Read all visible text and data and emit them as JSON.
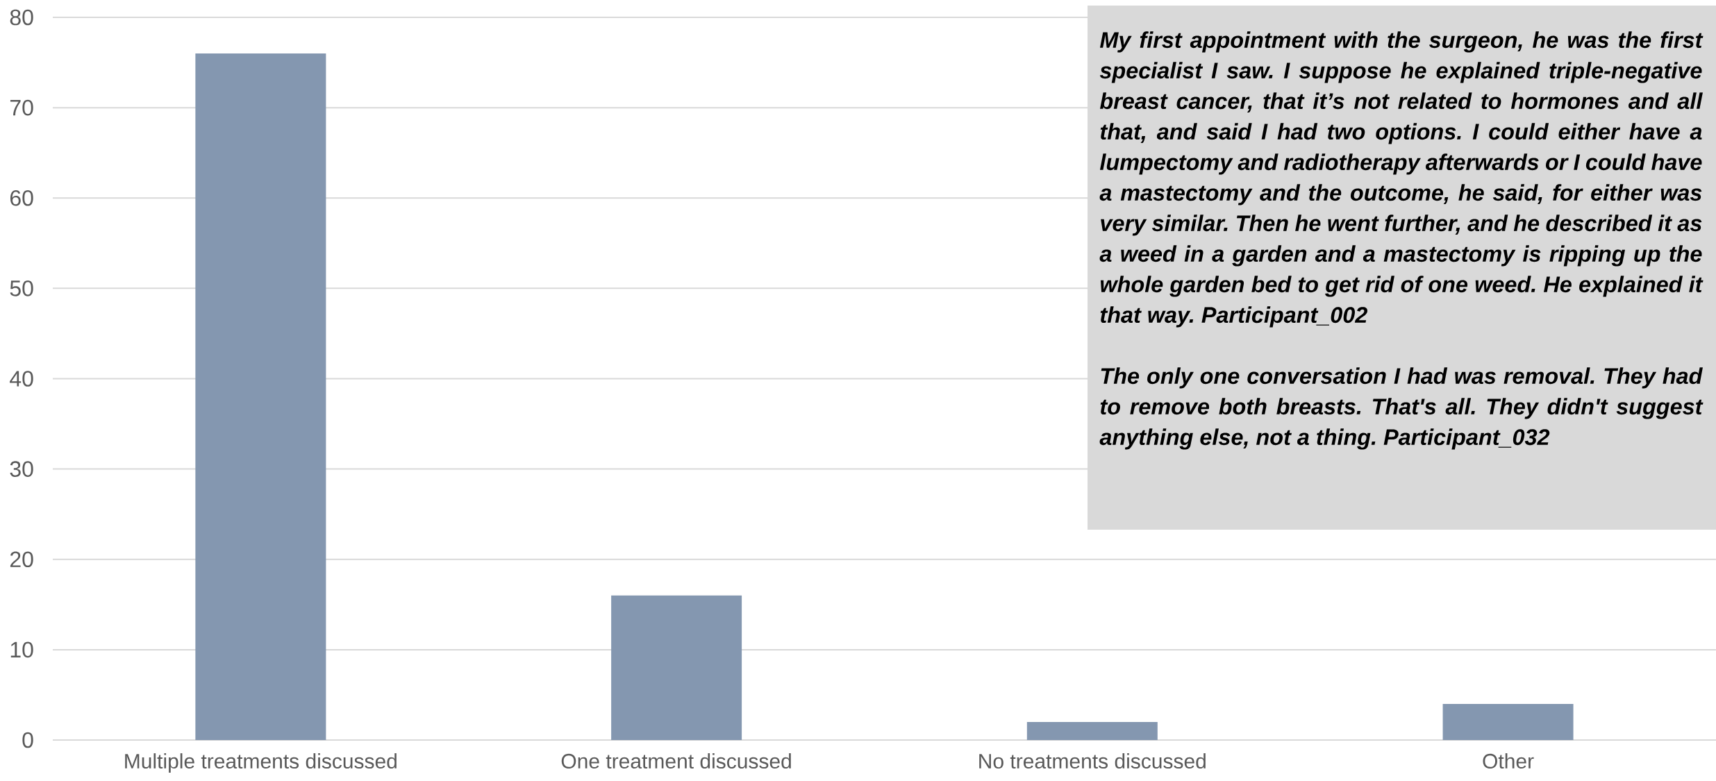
{
  "chart_data": {
    "type": "bar",
    "categories": [
      "Multiple treatments discussed",
      "One treatment discussed",
      "No treatments discussed",
      "Other"
    ],
    "values": [
      76,
      16,
      2,
      4
    ],
    "color": "#8497b0",
    "ylim": [
      0,
      80
    ],
    "yticks": [
      0,
      10,
      20,
      30,
      40,
      50,
      60,
      70,
      80
    ],
    "grid": "y",
    "annotations": [
      "My first appointment with the surgeon, he was the first specialist I saw. I suppose he explained triple-negative breast cancer, that it’s not related to hormones and all that, and said I had two options. I could either have a lumpectomy and radiotherapy afterwards or I could have a mastectomy and the outcome, he said, for either was very similar. Then he went further, and he described it as a weed in a garden and a mastectomy is ripping up the whole garden bed to get rid of one weed. He explained it that way. Participant_002",
      "The only one conversation I had was removal. They had to remove both breasts. That's all. They didn't suggest anything else, not a thing. Participant_032"
    ]
  }
}
